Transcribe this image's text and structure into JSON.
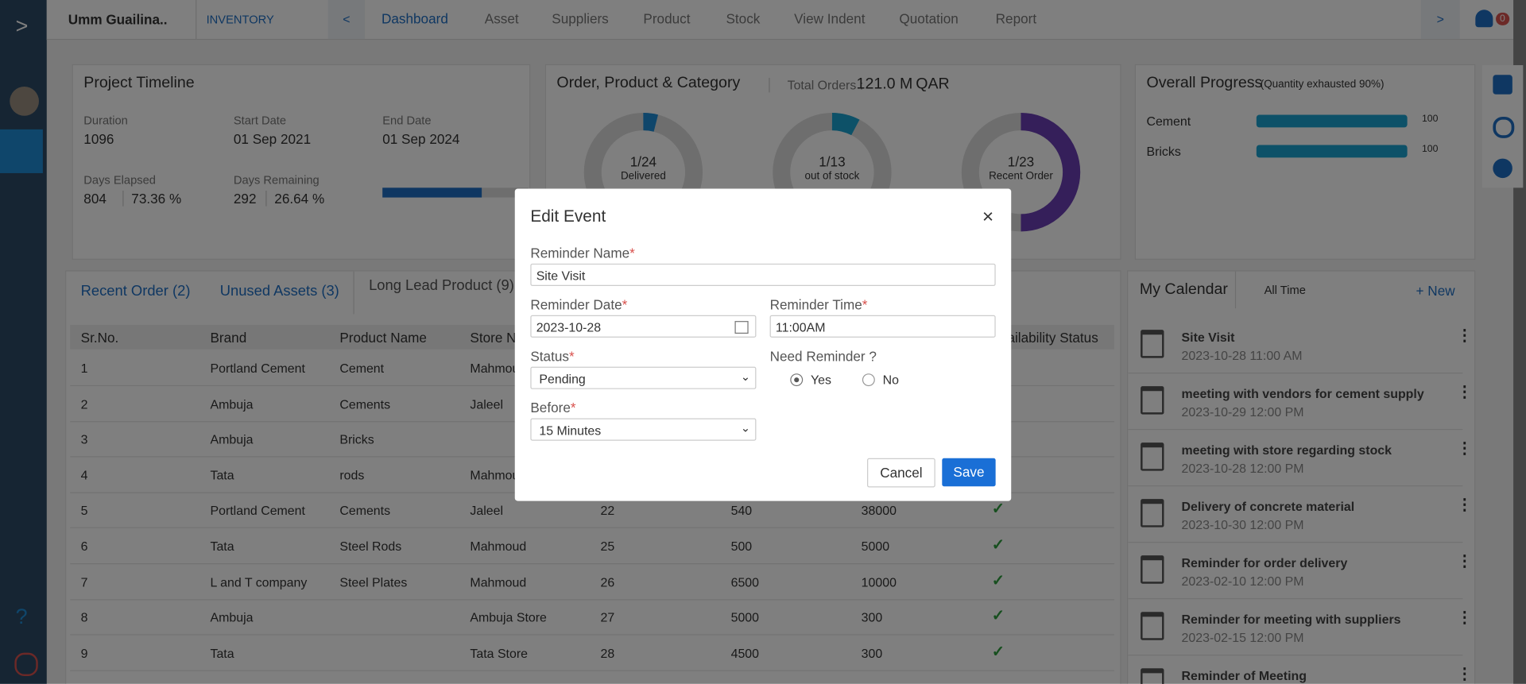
{
  "topbar": {
    "project": "Umm Guailina..",
    "module": "INVENTORY",
    "nav": [
      "Dashboard",
      "Asset",
      "Suppliers",
      "Product",
      "Stock",
      "View Indent",
      "Quotation",
      "Report"
    ],
    "notifications": "0"
  },
  "timeline": {
    "title": "Project Timeline",
    "duration_label": "Duration",
    "duration": "1096",
    "start_label": "Start Date",
    "start": "01 Sep 2021",
    "end_label": "End Date",
    "end": "01 Sep 2024",
    "elapsed_label": "Days Elapsed",
    "elapsed": "804",
    "elapsed_pct": "73.36 %",
    "remaining_label": "Days Remaining",
    "remaining": "292",
    "remaining_pct": "26.64 %"
  },
  "orders": {
    "title": "Order, Product & Category",
    "total_label": "Total Orders :",
    "total": "121.0 M",
    "currency": "QAR",
    "donuts": [
      {
        "value": "1/24",
        "label": "Delivered"
      },
      {
        "value": "1/13",
        "label": "out of stock"
      },
      {
        "value": "1/23",
        "label": "Recent Order"
      }
    ]
  },
  "progress": {
    "title": "Overall Progress",
    "subtitle": "(Quantity exhausted 90%)",
    "items": [
      {
        "name": "Cement",
        "value": "100"
      },
      {
        "name": "Bricks",
        "value": "100"
      }
    ]
  },
  "tabs": [
    "Recent Order (2)",
    "Unused Assets (3)",
    "Long Lead Product (9)"
  ],
  "table": {
    "headers": [
      "Sr.No.",
      "Brand",
      "Product Name",
      "Store Name",
      "Availability Status"
    ],
    "rows": [
      [
        "1",
        "Portland Cement",
        "Cement",
        "Mahmoud"
      ],
      [
        "2",
        "Ambuja",
        "Cements",
        "Jaleel"
      ],
      [
        "3",
        "Ambuja",
        "Bricks"
      ],
      [
        "4",
        "Tata",
        "rods",
        "Mahmoud"
      ],
      [
        "5",
        "Portland Cement",
        "Cements",
        "Jaleel",
        "22",
        "540",
        "38000"
      ],
      [
        "6",
        "Tata",
        "Steel Rods",
        "Mahmoud",
        "25",
        "500",
        "5000"
      ],
      [
        "7",
        "L and T company",
        "Steel Plates",
        "Mahmoud",
        "26",
        "6500",
        "10000"
      ],
      [
        "8",
        "Ambuja",
        null,
        "Ambuja Store",
        "27",
        "5000",
        "300"
      ],
      [
        "9",
        "Tata",
        null,
        "Tata Store",
        "28",
        "4500",
        "300"
      ]
    ]
  },
  "calendar": {
    "title": "My Calendar",
    "filter": "All Time",
    "new": "+ New",
    "events": [
      {
        "title": "Site Visit",
        "date": "2023-10-28 11:00 AM"
      },
      {
        "title": "meeting with vendors for cement supply",
        "date": "2023-10-29 12:00 PM"
      },
      {
        "title": "meeting with store regarding stock",
        "date": "2023-10-28 12:00 PM"
      },
      {
        "title": "Delivery of concrete material",
        "date": "2023-10-30 12:00 PM"
      },
      {
        "title": "Reminder for order delivery",
        "date": "2023-02-10 12:00 PM"
      },
      {
        "title": "Reminder for meeting with suppliers",
        "date": "2023-02-15 12:00 PM"
      },
      {
        "title": "Reminder of Meeting"
      }
    ]
  },
  "modal": {
    "title": "Edit Event",
    "required": "*",
    "name_label": "Reminder Name",
    "name": "Site Visit",
    "date_label": "Reminder Date",
    "date": "2023-10-28",
    "time_label": "Reminder Time",
    "time": "11:00AM",
    "status_label": "Status",
    "status": "Pending",
    "need_label": "Need Reminder ?",
    "yes": "Yes",
    "no": "No",
    "before_label": "Before",
    "before": "15 Minutes",
    "cancel": "Cancel",
    "save": "Save"
  }
}
